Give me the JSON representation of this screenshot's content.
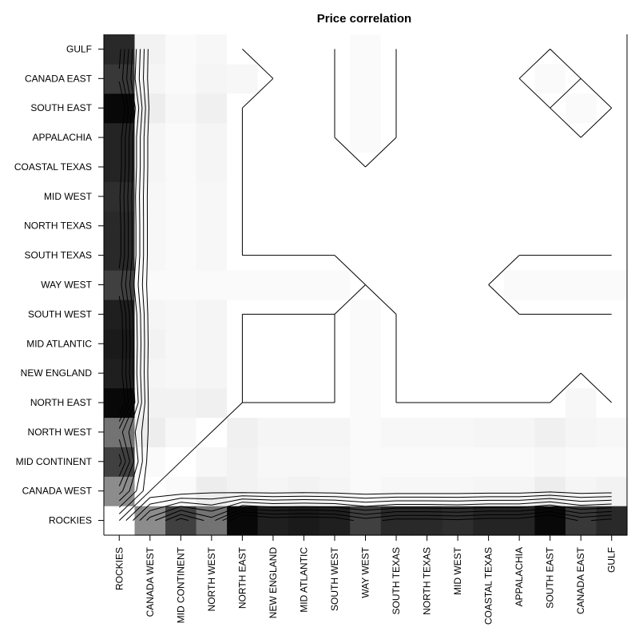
{
  "chart_data": {
    "type": "heatmap",
    "title": "Price correlation",
    "xlabel": "",
    "ylabel": "",
    "colormap": "grayscale (black = low, white = high)",
    "color_low": "#000000",
    "color_high": "#ffffff",
    "value_range": [
      0.0,
      1.0
    ],
    "contour_levels": [
      0.2,
      0.3,
      0.4,
      0.5,
      0.6,
      0.7,
      0.8,
      0.9,
      1.0
    ],
    "grid": false,
    "legend": "none",
    "categories": [
      "ROCKIES",
      "CANADA WEST",
      "MID CONTINENT",
      "NORTH WEST",
      "NORTH EAST",
      "NEW ENGLAND",
      "MID ATLANTIC",
      "SOUTH WEST",
      "WAY WEST",
      "SOUTH TEXAS",
      "NORTH TEXAS",
      "MID WEST",
      "COASTAL TEXAS",
      "APPALACHIA",
      "SOUTH EAST",
      "CANADA EAST",
      "GULF"
    ],
    "x_categories": [
      "ROCKIES",
      "CANADA WEST",
      "MID CONTINENT",
      "NORTH WEST",
      "NORTH EAST",
      "NEW ENGLAND",
      "MID ATLANTIC",
      "SOUTH WEST",
      "WAY WEST",
      "SOUTH TEXAS",
      "NORTH TEXAS",
      "MID WEST",
      "COASTAL TEXAS",
      "APPALACHIA",
      "SOUTH EAST",
      "CANADA EAST",
      "GULF"
    ],
    "y_categories_top_to_bottom": [
      "GULF",
      "CANADA EAST",
      "SOUTH EAST",
      "APPALACHIA",
      "COASTAL TEXAS",
      "MID WEST",
      "NORTH TEXAS",
      "SOUTH TEXAS",
      "WAY WEST",
      "SOUTH WEST",
      "MID ATLANTIC",
      "NEW ENGLAND",
      "NORTH EAST",
      "NORTH WEST",
      "MID CONTINENT",
      "CANADA WEST",
      "ROCKIES"
    ],
    "matrix": [
      [
        1.0,
        0.55,
        0.25,
        0.45,
        0.03,
        0.12,
        0.1,
        0.12,
        0.25,
        0.16,
        0.16,
        0.18,
        0.14,
        0.14,
        0.03,
        0.22,
        0.16
      ],
      [
        0.55,
        1.0,
        0.98,
        0.93,
        0.95,
        0.96,
        0.95,
        0.96,
        0.98,
        0.97,
        0.97,
        0.97,
        0.96,
        0.96,
        0.93,
        0.96,
        0.95
      ],
      [
        0.25,
        0.98,
        1.0,
        0.97,
        0.95,
        0.97,
        0.97,
        0.97,
        0.98,
        0.98,
        0.98,
        0.98,
        0.98,
        0.98,
        0.97,
        0.98,
        0.98
      ],
      [
        0.45,
        0.93,
        0.97,
        1.0,
        0.94,
        0.96,
        0.96,
        0.96,
        0.98,
        0.97,
        0.97,
        0.97,
        0.96,
        0.96,
        0.94,
        0.96,
        0.97
      ],
      [
        0.03,
        0.95,
        0.95,
        0.94,
        1.0,
        1.0,
        1.0,
        1.0,
        0.98,
        1.0,
        1.0,
        1.0,
        1.0,
        1.0,
        1.0,
        0.97,
        1.0
      ],
      [
        0.12,
        0.96,
        0.97,
        0.96,
        1.0,
        1.0,
        1.0,
        1.0,
        0.98,
        1.0,
        1.0,
        1.0,
        1.0,
        1.0,
        1.0,
        1.0,
        1.0
      ],
      [
        0.1,
        0.95,
        0.97,
        0.96,
        1.0,
        1.0,
        1.0,
        1.0,
        0.98,
        1.0,
        1.0,
        1.0,
        1.0,
        1.0,
        1.0,
        1.0,
        1.0
      ],
      [
        0.12,
        0.96,
        0.97,
        0.96,
        1.0,
        1.0,
        1.0,
        1.0,
        0.98,
        1.0,
        1.0,
        1.0,
        1.0,
        1.0,
        1.0,
        1.0,
        1.0
      ],
      [
        0.25,
        0.98,
        0.98,
        0.98,
        0.98,
        0.98,
        0.98,
        0.98,
        1.0,
        1.0,
        1.0,
        1.0,
        1.0,
        0.98,
        0.98,
        0.98,
        0.98
      ],
      [
        0.16,
        0.97,
        0.98,
        0.97,
        1.0,
        1.0,
        1.0,
        1.0,
        1.0,
        1.0,
        1.0,
        1.0,
        1.0,
        1.0,
        1.0,
        1.0,
        1.0
      ],
      [
        0.16,
        0.97,
        0.98,
        0.97,
        1.0,
        1.0,
        1.0,
        1.0,
        1.0,
        1.0,
        1.0,
        1.0,
        1.0,
        1.0,
        1.0,
        1.0,
        1.0
      ],
      [
        0.18,
        0.97,
        0.98,
        0.97,
        1.0,
        1.0,
        1.0,
        1.0,
        1.0,
        1.0,
        1.0,
        1.0,
        1.0,
        1.0,
        1.0,
        1.0,
        1.0
      ],
      [
        0.14,
        0.96,
        0.98,
        0.96,
        1.0,
        1.0,
        1.0,
        1.0,
        1.0,
        1.0,
        1.0,
        1.0,
        1.0,
        1.0,
        1.0,
        1.0,
        1.0
      ],
      [
        0.14,
        0.96,
        0.98,
        0.96,
        1.0,
        1.0,
        1.0,
        1.0,
        0.98,
        1.0,
        1.0,
        1.0,
        1.0,
        1.0,
        1.0,
        1.0,
        1.0
      ],
      [
        0.03,
        0.93,
        0.97,
        0.94,
        1.0,
        1.0,
        1.0,
        1.0,
        0.98,
        1.0,
        1.0,
        1.0,
        1.0,
        1.0,
        1.0,
        0.98,
        1.0
      ],
      [
        0.22,
        0.96,
        0.98,
        0.96,
        0.97,
        1.0,
        1.0,
        1.0,
        0.98,
        1.0,
        1.0,
        1.0,
        1.0,
        1.0,
        0.98,
        1.0,
        1.0
      ],
      [
        0.16,
        0.95,
        0.98,
        0.97,
        1.0,
        1.0,
        1.0,
        1.0,
        0.98,
        1.0,
        1.0,
        1.0,
        1.0,
        1.0,
        1.0,
        1.0,
        1.0
      ]
    ]
  }
}
